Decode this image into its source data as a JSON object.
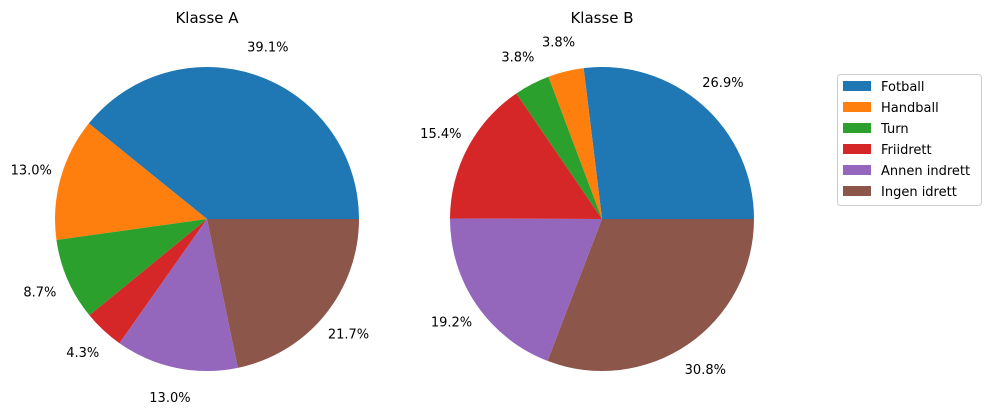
{
  "chart_data": [
    {
      "type": "pie",
      "title": "Klasse A",
      "categories": [
        "Fotball",
        "Handball",
        "Turn",
        "Friidrett",
        "Annen indrett",
        "Ingen idrett"
      ],
      "values": [
        39.1,
        13.0,
        8.7,
        4.3,
        13.0,
        21.7
      ],
      "labels": [
        "39.1%",
        "13.0%",
        "8.7%",
        "4.3%",
        "13.0%",
        "21.7%"
      ],
      "start_angle": 0,
      "direction": "counterclockwise"
    },
    {
      "type": "pie",
      "title": "Klasse B",
      "categories": [
        "Fotball",
        "Handball",
        "Turn",
        "Friidrett",
        "Annen indrett",
        "Ingen idrett"
      ],
      "values": [
        26.9,
        3.8,
        3.8,
        15.4,
        19.2,
        30.8
      ],
      "labels": [
        "26.9%",
        "3.8%",
        "3.8%",
        "15.4%",
        "19.2%",
        "30.8%"
      ],
      "start_angle": 0,
      "direction": "counterclockwise"
    }
  ],
  "legend": {
    "placement": "right",
    "entries": [
      "Fotball",
      "Handball",
      "Turn",
      "Friidrett",
      "Annen indrett",
      "Ingen idrett"
    ],
    "colors": [
      "#1f77b4",
      "#ff7f0e",
      "#2ca02c",
      "#d62728",
      "#9467bd",
      "#8c564b"
    ]
  }
}
